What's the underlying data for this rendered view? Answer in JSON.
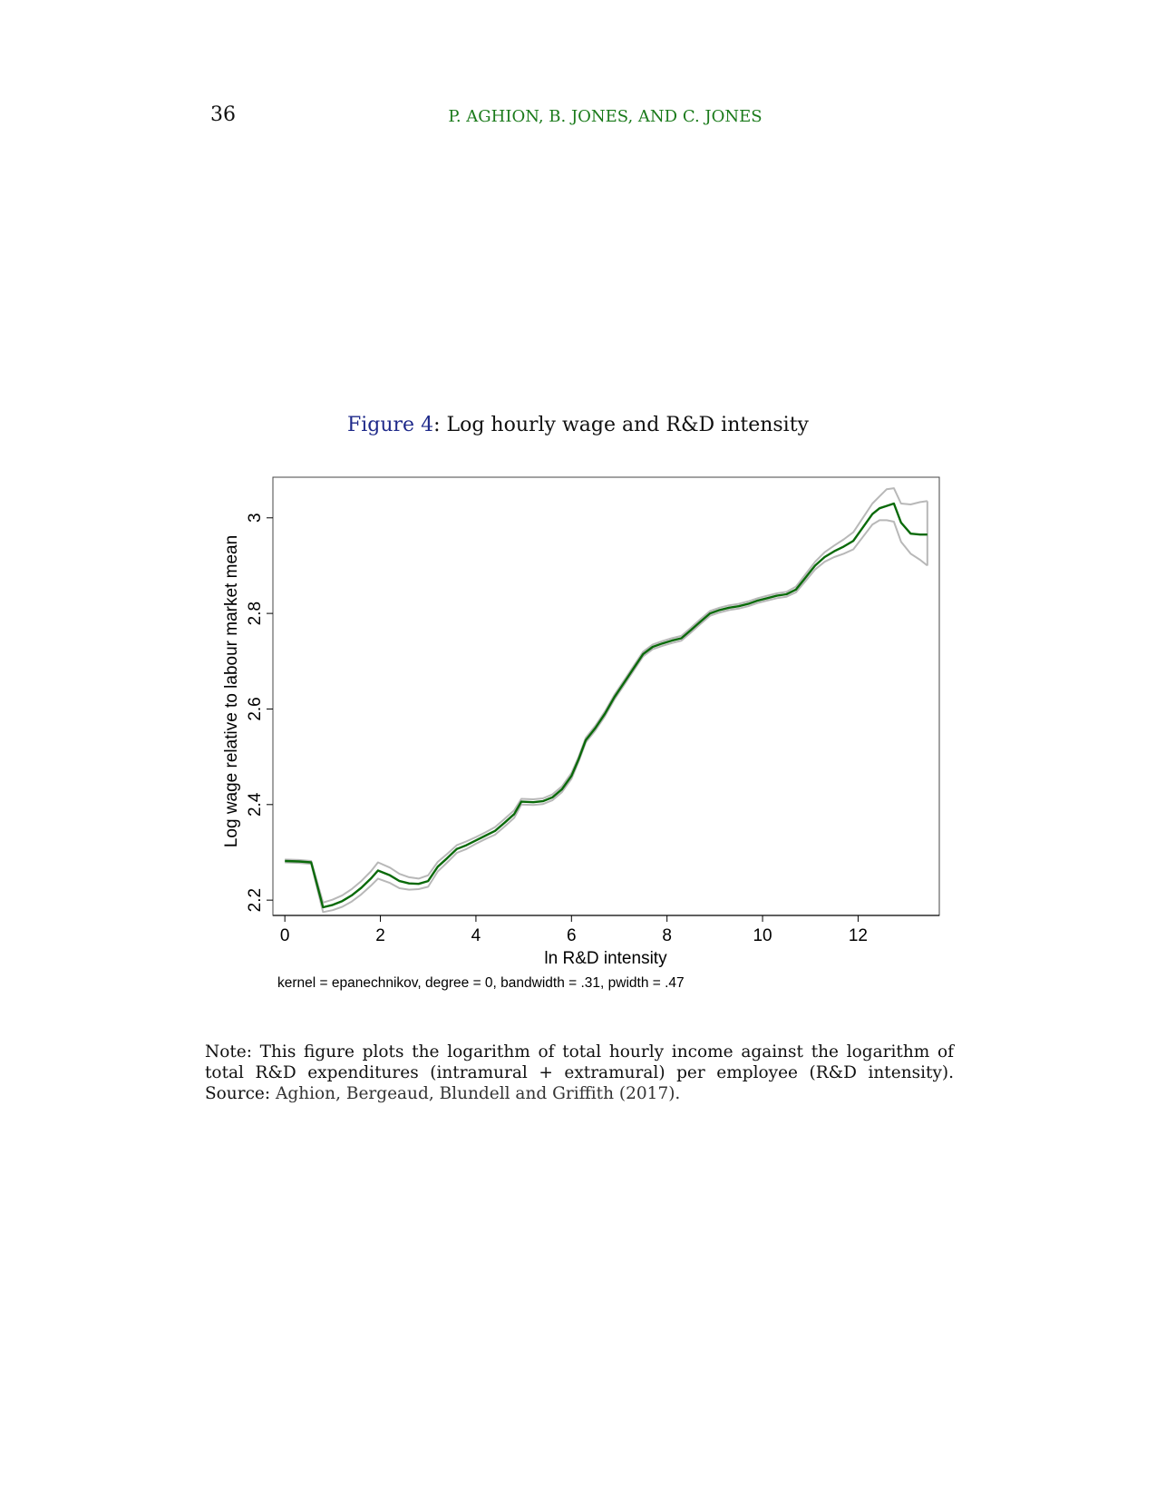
{
  "page": {
    "number": "36",
    "running_head": "P. AGHION, B. JONES, AND C. JONES"
  },
  "figure": {
    "label": "Figure 4",
    "title": ": Log hourly wage and R&D intensity",
    "kernel_note": "kernel = epanechnikov, degree = 0, bandwidth = .31, pwidth = .47"
  },
  "note": {
    "text": "Note: This figure plots the logarithm of total hourly income against the logarithm of total R&D expenditures (intramural + extramural) per employee (R&D intensity). Source: ",
    "citation": "Aghion, Bergeaud, Blundell and Griffith (2017)."
  },
  "colors": {
    "fit_line": "#0a6a0a",
    "ci_band": "#b8b8b8"
  },
  "chart_data": {
    "type": "line",
    "xlabel": "ln R&D intensity",
    "ylabel": "Log wage relative to labour market mean",
    "xlim": [
      -0.25,
      13.7
    ],
    "ylim": [
      2.168,
      3.085
    ],
    "x_ticks": [
      "0",
      "2",
      "4",
      "6",
      "8",
      "10",
      "12"
    ],
    "y_ticks": [
      "2.2",
      "2.4",
      "2.6",
      "2.8",
      "3"
    ],
    "grid": false,
    "series": [
      {
        "role": "fit",
        "x": [
          0,
          0.3,
          0.55,
          0.8,
          1.0,
          1.2,
          1.4,
          1.6,
          1.8,
          1.95,
          2.2,
          2.4,
          2.6,
          2.8,
          3.0,
          3.2,
          3.4,
          3.6,
          3.8,
          4.0,
          4.2,
          4.4,
          4.6,
          4.8,
          4.95,
          5.2,
          5.4,
          5.6,
          5.8,
          6.0,
          6.15,
          6.3,
          6.5,
          6.7,
          6.9,
          7.1,
          7.3,
          7.5,
          7.7,
          7.9,
          8.1,
          8.3,
          8.5,
          8.7,
          8.9,
          9.1,
          9.3,
          9.5,
          9.7,
          9.9,
          10.1,
          10.3,
          10.5,
          10.7,
          10.9,
          11.1,
          11.3,
          11.5,
          11.7,
          11.9,
          12.1,
          12.3,
          12.45,
          12.6,
          12.75,
          12.9,
          13.1,
          13.3,
          13.45
        ],
        "y": [
          2.282,
          2.281,
          2.279,
          2.185,
          2.19,
          2.198,
          2.21,
          2.226,
          2.245,
          2.262,
          2.252,
          2.24,
          2.235,
          2.234,
          2.24,
          2.27,
          2.288,
          2.307,
          2.315,
          2.325,
          2.335,
          2.345,
          2.362,
          2.38,
          2.406,
          2.405,
          2.407,
          2.415,
          2.432,
          2.46,
          2.495,
          2.535,
          2.56,
          2.59,
          2.625,
          2.655,
          2.685,
          2.715,
          2.73,
          2.737,
          2.743,
          2.748,
          2.765,
          2.783,
          2.8,
          2.807,
          2.812,
          2.815,
          2.82,
          2.827,
          2.832,
          2.837,
          2.84,
          2.85,
          2.875,
          2.9,
          2.918,
          2.93,
          2.94,
          2.952,
          2.98,
          3.008,
          3.02,
          3.025,
          3.03,
          2.99,
          2.967,
          2.965,
          2.965
        ]
      },
      {
        "role": "upper_ci",
        "x": [
          0,
          0.3,
          0.55,
          0.8,
          1.0,
          1.2,
          1.4,
          1.6,
          1.8,
          1.95,
          2.2,
          2.4,
          2.6,
          2.8,
          3.0,
          3.2,
          3.4,
          3.6,
          3.8,
          4.0,
          4.2,
          4.4,
          4.6,
          4.8,
          4.95,
          5.2,
          5.4,
          5.6,
          5.8,
          6.0,
          6.15,
          6.3,
          6.5,
          6.7,
          6.9,
          7.1,
          7.3,
          7.5,
          7.7,
          7.9,
          8.1,
          8.3,
          8.5,
          8.7,
          8.9,
          9.1,
          9.3,
          9.5,
          9.7,
          9.9,
          10.1,
          10.3,
          10.5,
          10.7,
          10.9,
          11.1,
          11.3,
          11.5,
          11.7,
          11.9,
          12.1,
          12.3,
          12.45,
          12.6,
          12.75,
          12.9,
          13.1,
          13.3,
          13.45
        ],
        "y": [
          2.285,
          2.284,
          2.282,
          2.195,
          2.201,
          2.21,
          2.223,
          2.24,
          2.26,
          2.279,
          2.268,
          2.255,
          2.248,
          2.245,
          2.252,
          2.28,
          2.297,
          2.315,
          2.323,
          2.332,
          2.342,
          2.353,
          2.37,
          2.388,
          2.412,
          2.411,
          2.413,
          2.421,
          2.438,
          2.466,
          2.5,
          2.54,
          2.565,
          2.595,
          2.63,
          2.66,
          2.69,
          2.72,
          2.735,
          2.742,
          2.748,
          2.753,
          2.77,
          2.788,
          2.805,
          2.812,
          2.817,
          2.82,
          2.825,
          2.832,
          2.837,
          2.842,
          2.845,
          2.856,
          2.882,
          2.908,
          2.928,
          2.942,
          2.955,
          2.97,
          3.0,
          3.03,
          3.045,
          3.06,
          3.062,
          3.03,
          3.028,
          3.033,
          3.035
        ]
      },
      {
        "role": "lower_ci",
        "x": [
          0,
          0.3,
          0.55,
          0.8,
          1.0,
          1.2,
          1.4,
          1.6,
          1.8,
          1.95,
          2.2,
          2.4,
          2.6,
          2.8,
          3.0,
          3.2,
          3.4,
          3.6,
          3.8,
          4.0,
          4.2,
          4.4,
          4.6,
          4.8,
          4.95,
          5.2,
          5.4,
          5.6,
          5.8,
          6.0,
          6.15,
          6.3,
          6.5,
          6.7,
          6.9,
          7.1,
          7.3,
          7.5,
          7.7,
          7.9,
          8.1,
          8.3,
          8.5,
          8.7,
          8.9,
          9.1,
          9.3,
          9.5,
          9.7,
          9.9,
          10.1,
          10.3,
          10.5,
          10.7,
          10.9,
          11.1,
          11.3,
          11.5,
          11.7,
          11.9,
          12.1,
          12.3,
          12.45,
          12.6,
          12.75,
          12.9,
          13.1,
          13.3,
          13.45
        ],
        "y": [
          2.279,
          2.278,
          2.276,
          2.175,
          2.179,
          2.186,
          2.197,
          2.212,
          2.23,
          2.245,
          2.236,
          2.225,
          2.222,
          2.223,
          2.228,
          2.26,
          2.279,
          2.299,
          2.307,
          2.318,
          2.328,
          2.337,
          2.354,
          2.372,
          2.4,
          2.399,
          2.401,
          2.409,
          2.426,
          2.454,
          2.49,
          2.53,
          2.555,
          2.585,
          2.62,
          2.65,
          2.68,
          2.71,
          2.725,
          2.732,
          2.738,
          2.743,
          2.76,
          2.778,
          2.795,
          2.802,
          2.807,
          2.81,
          2.815,
          2.822,
          2.827,
          2.832,
          2.835,
          2.844,
          2.868,
          2.892,
          2.908,
          2.918,
          2.925,
          2.934,
          2.96,
          2.986,
          2.995,
          2.995,
          2.992,
          2.95,
          2.925,
          2.912,
          2.9
        ]
      }
    ]
  }
}
